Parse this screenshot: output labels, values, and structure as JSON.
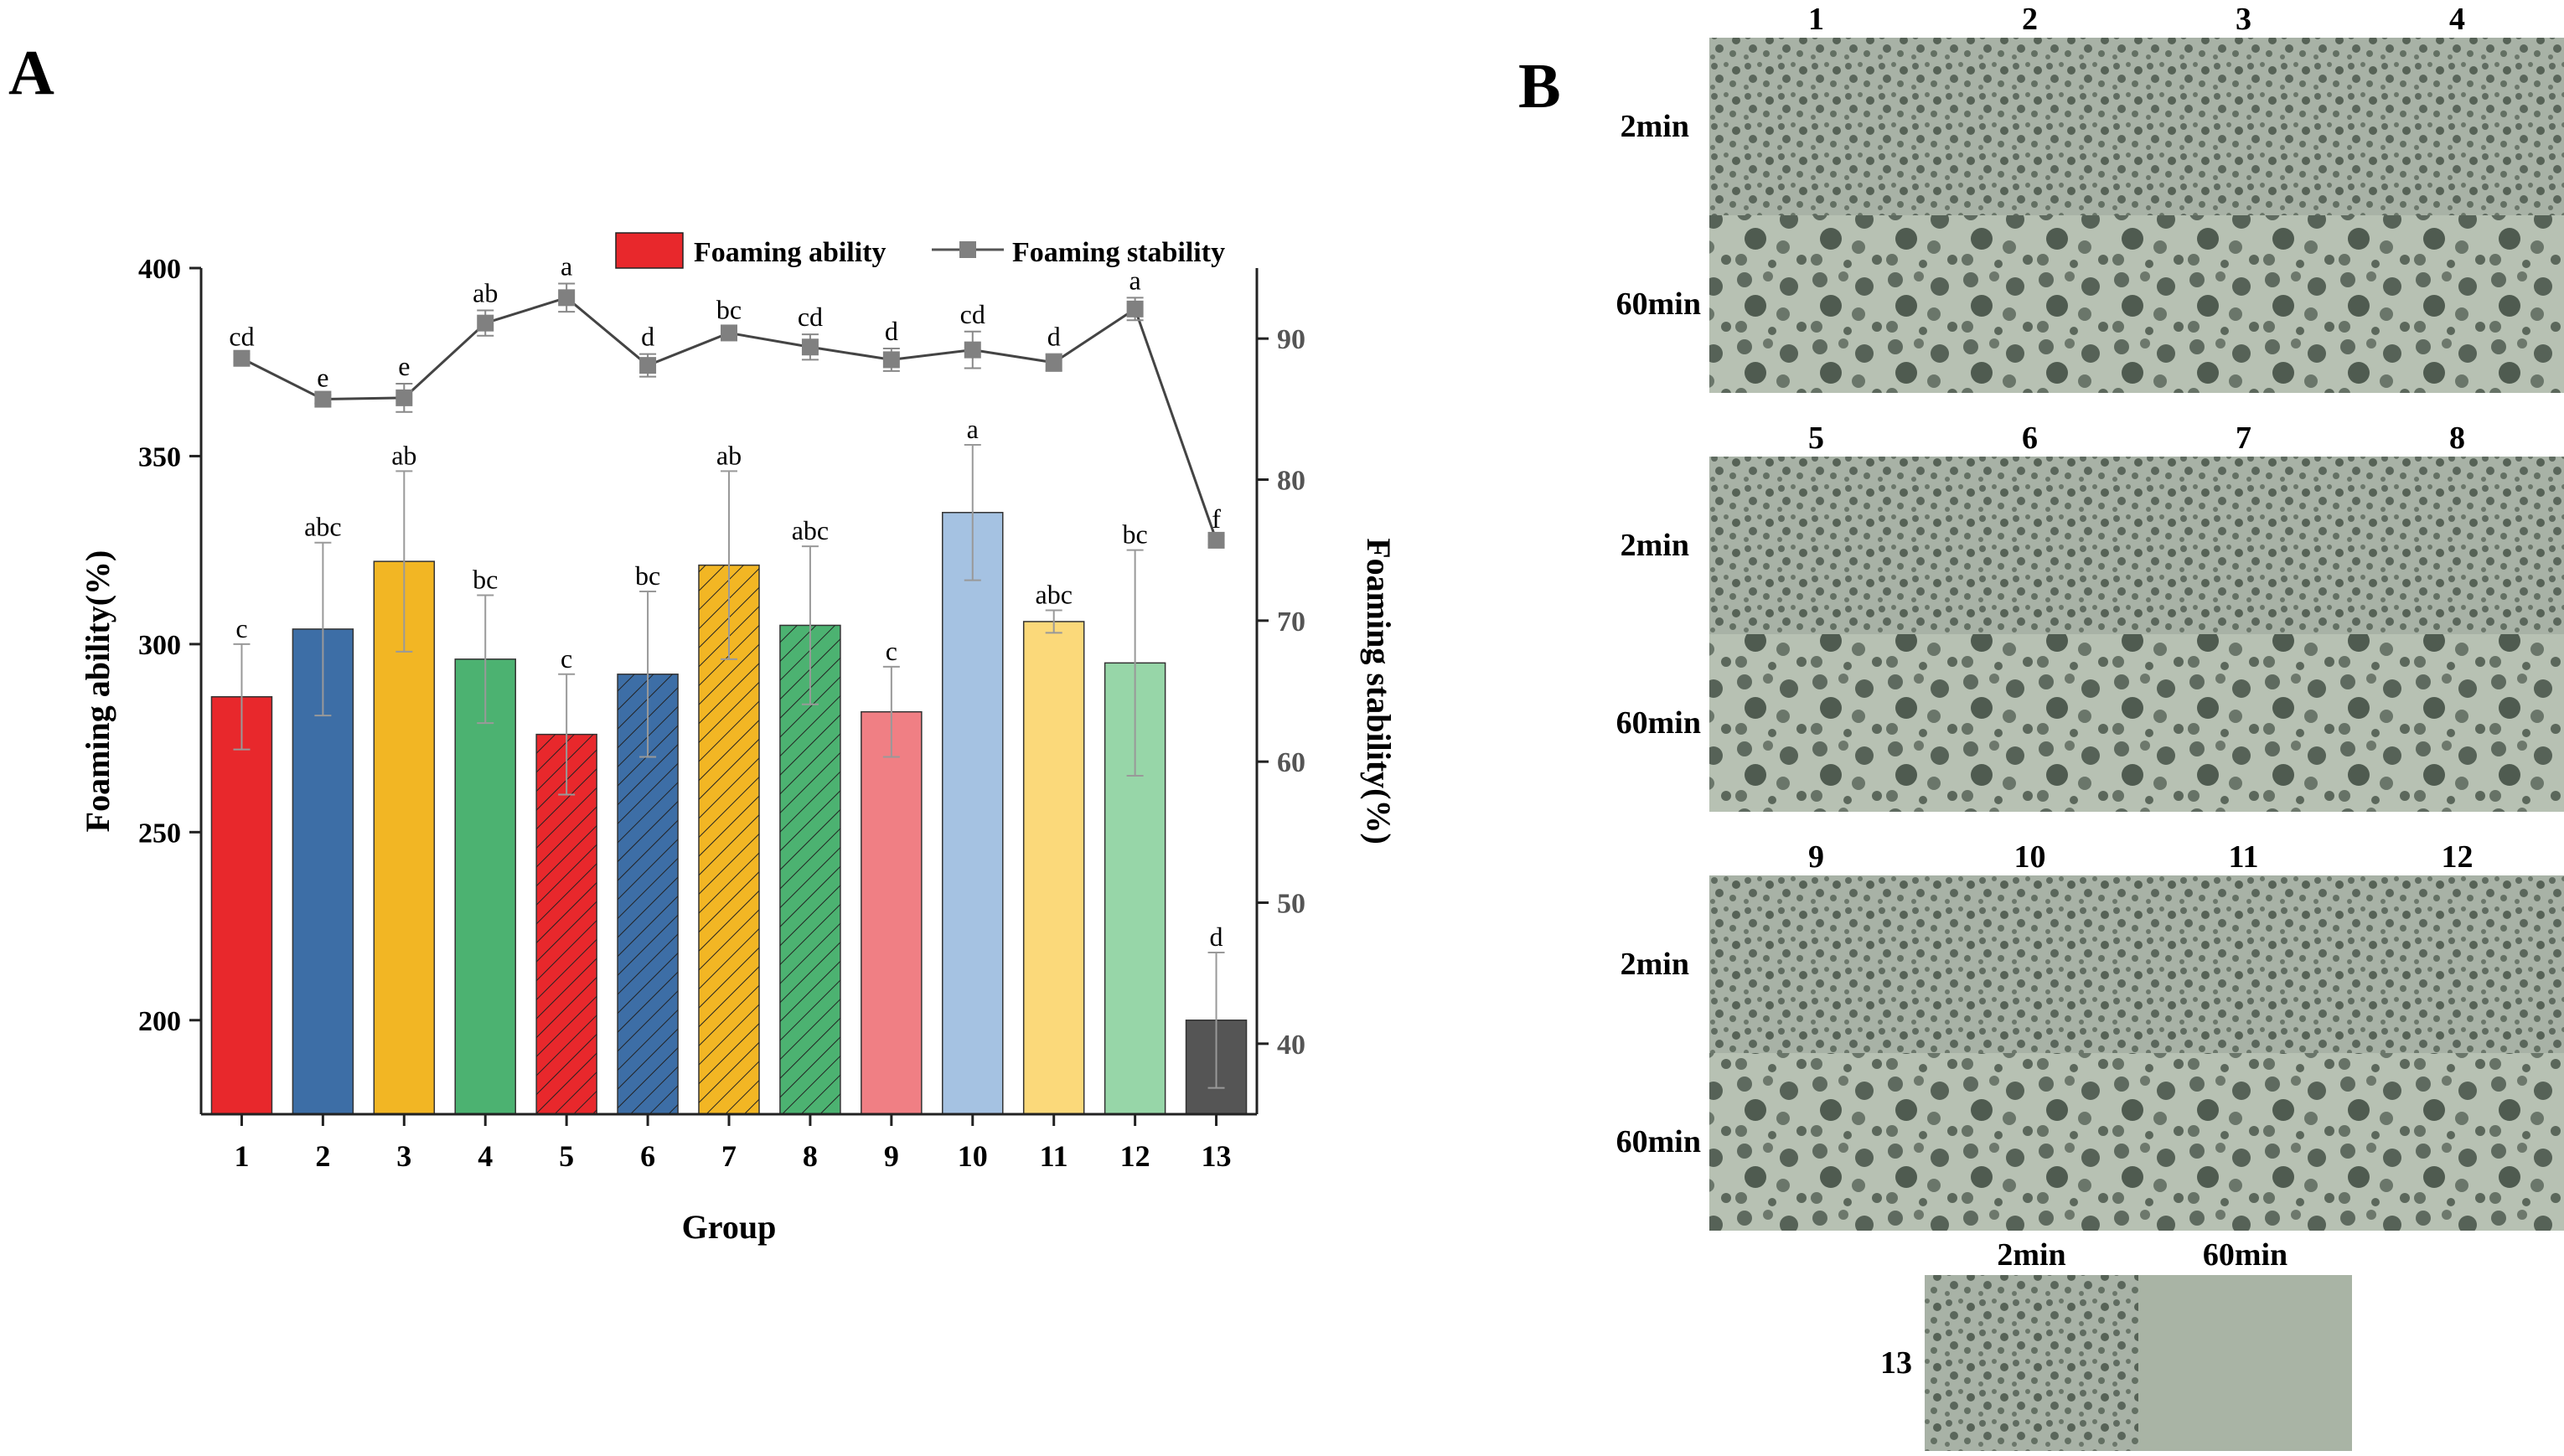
{
  "panel_a_label": "A",
  "panel_b_label": "B",
  "chart_data": {
    "type": "bar",
    "xlabel": "Group",
    "ylabel": "Foaming ability(%)",
    "y2label": "Foaming stability(%)",
    "ylim": [
      175,
      400
    ],
    "y2lim": [
      35,
      95
    ],
    "yticks": [
      200,
      250,
      300,
      350,
      400
    ],
    "y2ticks": [
      40,
      50,
      60,
      70,
      80,
      90
    ],
    "categories": [
      "1",
      "2",
      "3",
      "4",
      "5",
      "6",
      "7",
      "8",
      "9",
      "10",
      "11",
      "12",
      "13"
    ],
    "series": [
      {
        "name": "Foaming ability",
        "type": "bar",
        "values": [
          286,
          304,
          322,
          296,
          276,
          292,
          321,
          305,
          282,
          335,
          306,
          295,
          200
        ],
        "errors": [
          14,
          23,
          24,
          17,
          16,
          22,
          25,
          21,
          12,
          18,
          3,
          30,
          18
        ],
        "letters": [
          "c",
          "abc",
          "ab",
          "bc",
          "c",
          "bc",
          "ab",
          "abc",
          "c",
          "a",
          "abc",
          "bc",
          "d"
        ]
      },
      {
        "name": "Foaming stability",
        "type": "line",
        "values": [
          88.6,
          85.7,
          85.8,
          91.1,
          92.9,
          88.1,
          90.4,
          89.4,
          88.5,
          89.2,
          88.3,
          92.1,
          75.7
        ],
        "errors": [
          0.3,
          0.3,
          1.0,
          0.9,
          1.0,
          0.8,
          0.4,
          0.9,
          0.8,
          1.3,
          0.6,
          0.8,
          0.3
        ],
        "letters": [
          "cd",
          "e",
          "e",
          "ab",
          "a",
          "d",
          "bc",
          "cd",
          "d",
          "cd",
          "d",
          "a",
          "f"
        ]
      }
    ],
    "colors": [
      "#e8282c",
      "#3d6ea6",
      "#f2b624",
      "#4cb271",
      "#e8282c",
      "#3d6ea6",
      "#f2b624",
      "#4cb271",
      "#f07f84",
      "#a5c2e2",
      "#fbd97a",
      "#97d6a8",
      "#555555"
    ],
    "hatched": [
      false,
      false,
      false,
      false,
      true,
      true,
      true,
      true,
      false,
      false,
      false,
      false,
      false
    ],
    "legend": [
      "Foaming ability",
      "Foaming stability"
    ],
    "legend_position": "top"
  },
  "micrographs": {
    "time_labels": [
      "2min",
      "60min"
    ],
    "groups": [
      {
        "numbers": [
          "1",
          "2",
          "3",
          "4"
        ]
      },
      {
        "numbers": [
          "5",
          "6",
          "7",
          "8"
        ]
      },
      {
        "numbers": [
          "9",
          "10",
          "11",
          "12"
        ]
      }
    ],
    "last_group": {
      "number": "13",
      "col_labels": [
        "2min",
        "60min"
      ]
    }
  }
}
